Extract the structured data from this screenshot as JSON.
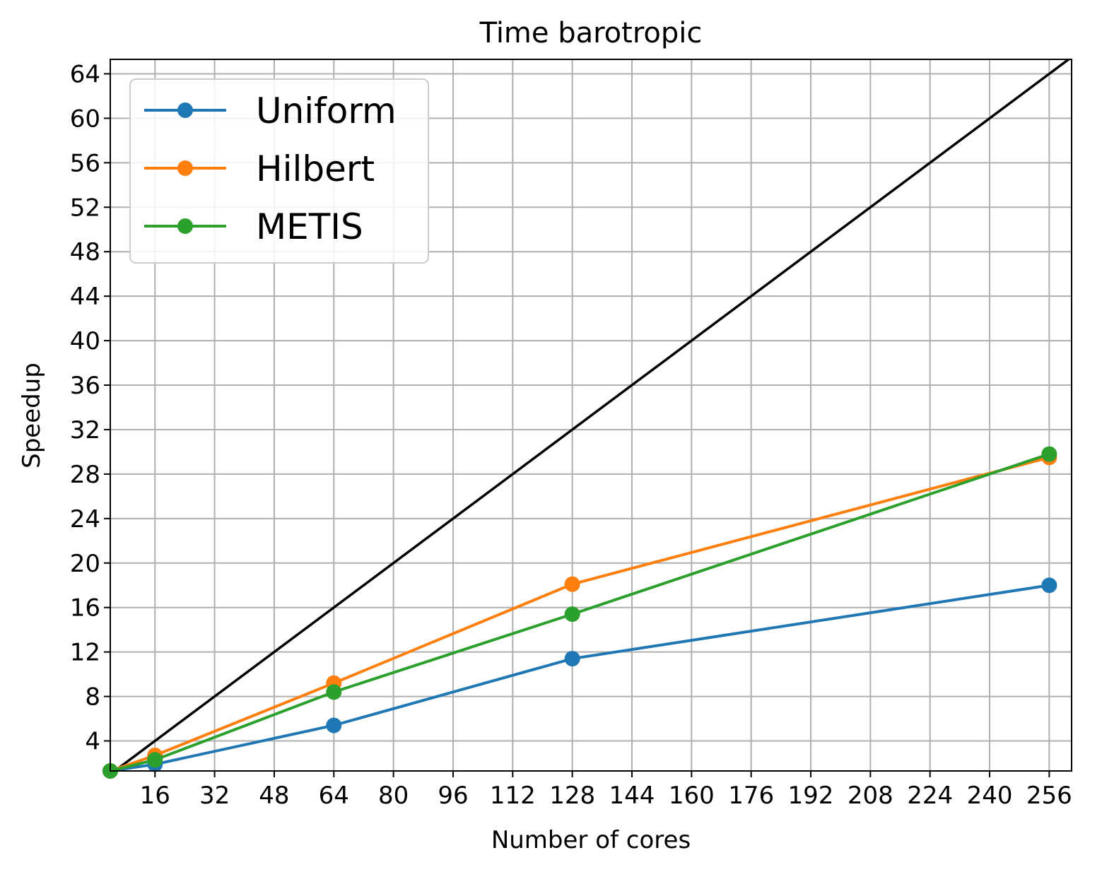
{
  "chart_data": {
    "type": "line",
    "title": "Time barotropic",
    "xlabel": "Number of cores",
    "ylabel": "Speedup",
    "xlim": [
      4,
      262
    ],
    "ylim": [
      1.3,
      65.3
    ],
    "xticks": [
      16,
      32,
      48,
      64,
      80,
      96,
      112,
      128,
      144,
      160,
      176,
      192,
      208,
      224,
      240,
      256
    ],
    "yticks": [
      4,
      8,
      12,
      16,
      20,
      24,
      28,
      32,
      36,
      40,
      44,
      48,
      52,
      56,
      60,
      64
    ],
    "grid": true,
    "legend_position": "top-left",
    "reference_line": {
      "x": [
        4,
        262
      ],
      "y": [
        1,
        65.5
      ],
      "color": "#000000"
    },
    "series": [
      {
        "name": "Uniform",
        "color": "#1f77b4",
        "x": [
          4,
          16,
          64,
          128,
          256
        ],
        "y": [
          1.3,
          1.9,
          5.4,
          11.4,
          18.0
        ]
      },
      {
        "name": "Hilbert",
        "color": "#ff7f0e",
        "x": [
          4,
          16,
          64,
          128,
          256
        ],
        "y": [
          1.3,
          2.7,
          9.2,
          18.1,
          29.5
        ]
      },
      {
        "name": "METIS",
        "color": "#2ca02c",
        "x": [
          4,
          16,
          64,
          128,
          256
        ],
        "y": [
          1.3,
          2.3,
          8.4,
          15.4,
          29.8
        ]
      }
    ]
  }
}
